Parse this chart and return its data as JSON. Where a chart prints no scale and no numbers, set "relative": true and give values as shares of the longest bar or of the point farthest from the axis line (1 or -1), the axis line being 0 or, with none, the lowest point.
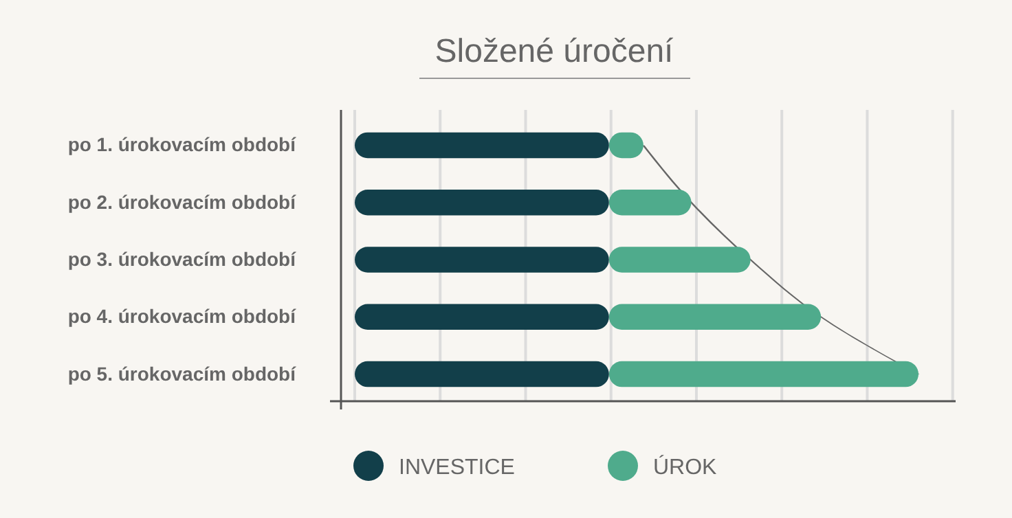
{
  "chart_data": {
    "type": "bar",
    "title": "Složené úročení",
    "orientation": "horizontal",
    "stacked": true,
    "relative": true,
    "grid": "x",
    "legend": "bottom",
    "categories": [
      "po 1. úrokovacím období",
      "po 2. úrokovacím období",
      "po 3. úrokovacím období",
      "po 4. úrokovacím období",
      "po 5. úrokovacím období"
    ],
    "series": [
      {
        "name": "INVESTICE",
        "color": "#123f4a",
        "values": [
          0.451,
          0.451,
          0.451,
          0.451,
          0.451
        ]
      },
      {
        "name": "ÚROK",
        "color": "#4fab8c",
        "values": [
          0.061,
          0.146,
          0.251,
          0.376,
          0.549
        ]
      }
    ]
  }
}
